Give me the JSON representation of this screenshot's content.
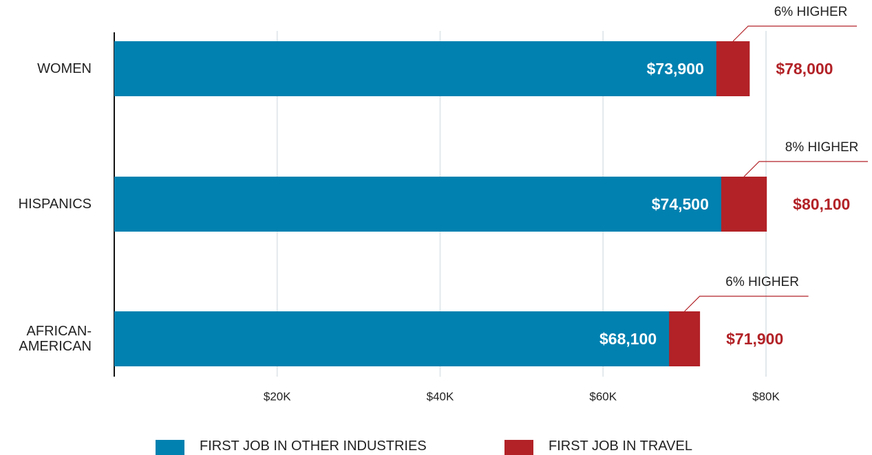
{
  "chart_data": {
    "type": "bar",
    "orientation": "horizontal",
    "overlap": true,
    "categories": [
      "WOMEN",
      "HISPANICS",
      "AFRICAN-\nAMERICAN"
    ],
    "series": [
      {
        "name": "FIRST JOB IN OTHER INDUSTRIES",
        "color": "#0081b0",
        "values": [
          73900,
          74500,
          68100
        ],
        "value_labels": [
          "$73,900",
          "$74,500",
          "$68,100"
        ]
      },
      {
        "name": "FIRST JOB IN TRAVEL",
        "color": "#b22227",
        "values": [
          78000,
          80100,
          71900
        ],
        "value_labels": [
          "$78,000",
          "$80,100",
          "$71,900"
        ]
      }
    ],
    "annotations": [
      "6% HIGHER",
      "8% HIGHER",
      "6% HIGHER"
    ],
    "xlim": [
      0,
      90000
    ],
    "xticks": [
      {
        "value": 20000,
        "label": "$20K"
      },
      {
        "value": 40000,
        "label": "$40K"
      },
      {
        "value": 60000,
        "label": "$60K"
      },
      {
        "value": 80000,
        "label": "$80K"
      }
    ],
    "grid": true
  }
}
